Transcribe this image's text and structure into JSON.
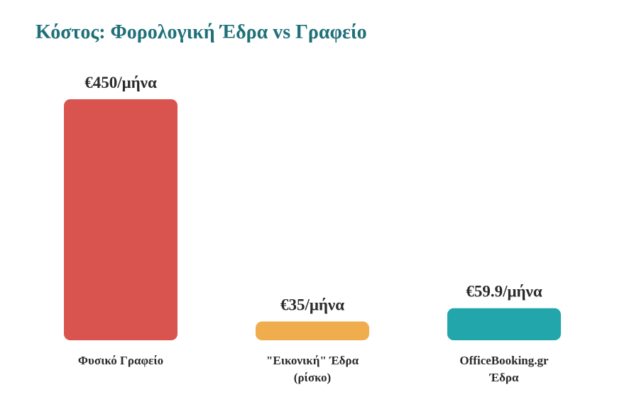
{
  "chart_data": {
    "type": "bar",
    "title": "Κόστος: Φορολογική Έδρα vs Γραφείο",
    "categories": [
      [
        "Φυσικό Γραφείο"
      ],
      [
        "\"Εικονική\" Έδρα",
        "(ρίσκο)"
      ],
      [
        "OfficeBooking.gr",
        "Έδρα"
      ]
    ],
    "values": [
      450,
      35,
      59.9
    ],
    "value_labels": [
      "€450/μήνα",
      "€35/μήνα",
      "€59.9/μήνα"
    ],
    "colors": [
      "#d9534f",
      "#f0ad4e",
      "#22a6ab"
    ],
    "title_color": "#1f7079",
    "xlabel": "",
    "ylabel": "",
    "ylim": [
      0,
      450
    ],
    "grid": false,
    "legend": "none"
  }
}
